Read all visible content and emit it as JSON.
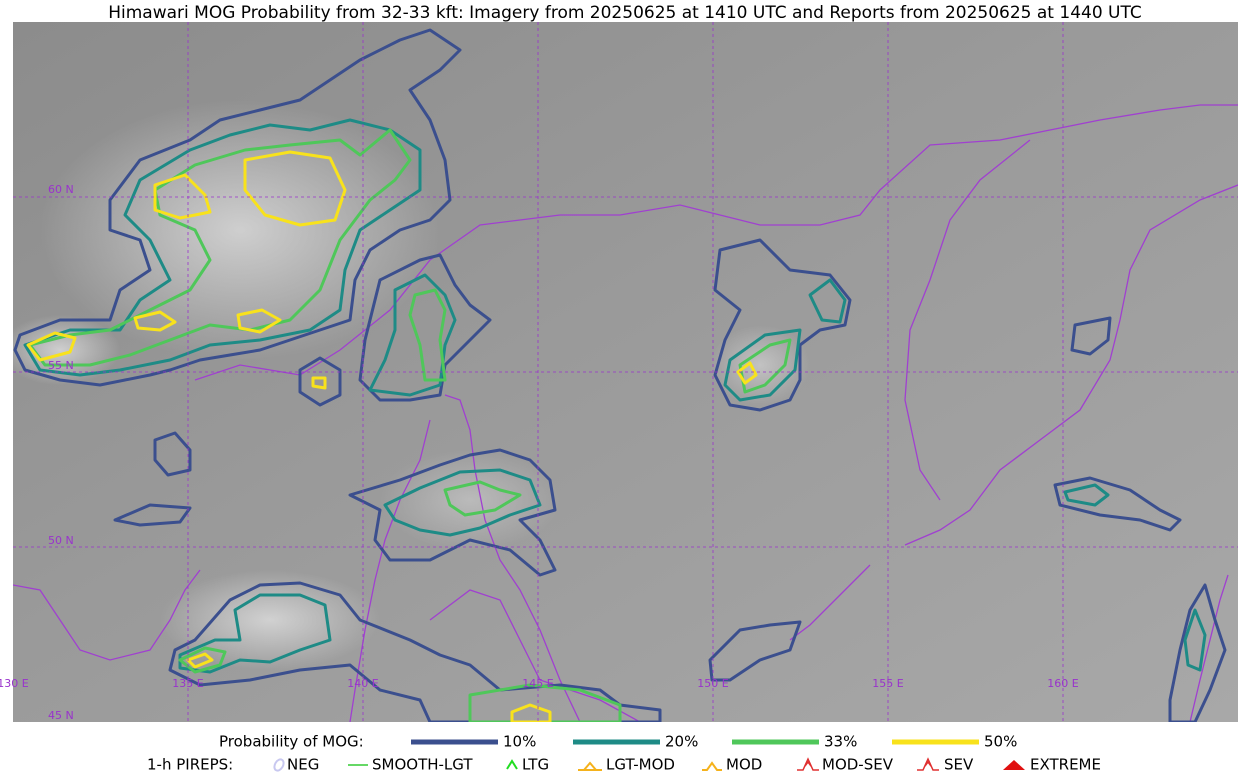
{
  "title": "Himawari MOG Probability from 32-33 kft: Imagery from 20250625 at 1410 UTC and Reports from 20250625 at 1440 UTC",
  "latitude_labels": [
    "60 N",
    "55 N",
    "50 N",
    "45 N"
  ],
  "longitude_labels": [
    "130 E",
    "135 E",
    "140 E",
    "145 E",
    "150 E",
    "155 E",
    "160 E"
  ],
  "probability_legend": {
    "title": "Probability of MOG:",
    "items": [
      {
        "label": "10%",
        "color": "#3b4f8e"
      },
      {
        "label": "20%",
        "color": "#1e8b86"
      },
      {
        "label": "33%",
        "color": "#4fc75a"
      },
      {
        "label": "50%",
        "color": "#f8e21c"
      }
    ]
  },
  "pirep_legend": {
    "title": "1-h PIREPS:",
    "items": [
      {
        "label": "NEG",
        "color": "#c8c8f0"
      },
      {
        "label": "SMOOTH-LGT",
        "color": "#33cc33"
      },
      {
        "label": "LTG",
        "color": "#22dd22"
      },
      {
        "label": "LGT-MOD",
        "color": "#f5b21c"
      },
      {
        "label": "MOD",
        "color": "#f5b21c"
      },
      {
        "label": "MOD-SEV",
        "color": "#e03030"
      },
      {
        "label": "SEV",
        "color": "#e03030"
      },
      {
        "label": "EXTREME",
        "color": "#e01010"
      }
    ]
  }
}
